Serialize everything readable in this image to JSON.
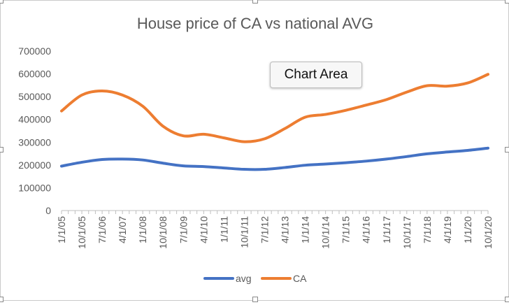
{
  "chart_data": {
    "type": "line",
    "title": "House price of CA vs national AVG",
    "xlabel": "",
    "ylabel": "",
    "ylim": [
      0,
      700000
    ],
    "yticks": [
      0,
      100000,
      200000,
      300000,
      400000,
      500000,
      600000,
      700000
    ],
    "ytick_labels": [
      "0",
      "100000",
      "200000",
      "300000",
      "400000",
      "500000",
      "600000",
      "700000"
    ],
    "x_tick_labels": [
      "1/1/05",
      "10/1/05",
      "7/1/06",
      "4/1/07",
      "1/1/08",
      "10/1/08",
      "7/1/09",
      "4/1/10",
      "1/1/11",
      "10/1/11",
      "7/1/12",
      "4/1/13",
      "1/1/14",
      "10/1/14",
      "7/1/15",
      "4/1/16",
      "1/1/17",
      "10/1/17",
      "7/1/18",
      "4/1/19",
      "1/1/20",
      "10/1/20"
    ],
    "grid": false,
    "legend_position": "bottom",
    "series": [
      {
        "name": "avg",
        "color": "#4472C4",
        "x": [
          "1/1/05",
          "10/1/05",
          "7/1/06",
          "4/1/07",
          "1/1/08",
          "10/1/08",
          "7/1/09",
          "4/1/10",
          "1/1/11",
          "10/1/11",
          "7/1/12",
          "4/1/13",
          "1/1/14",
          "10/1/14",
          "7/1/15",
          "4/1/16",
          "1/1/17",
          "10/1/17",
          "7/1/18",
          "4/1/19",
          "1/1/20",
          "10/1/20"
        ],
        "values": [
          195000,
          212000,
          224000,
          226000,
          222000,
          208000,
          196000,
          193000,
          187000,
          181000,
          181000,
          189000,
          199000,
          204000,
          210000,
          217000,
          226000,
          237000,
          249000,
          257000,
          264000,
          274000
        ]
      },
      {
        "name": "CA",
        "color": "#ED7D31",
        "x": [
          "1/1/05",
          "10/1/05",
          "7/1/06",
          "4/1/07",
          "1/1/08",
          "10/1/08",
          "7/1/09",
          "4/1/10",
          "1/1/11",
          "10/1/11",
          "7/1/12",
          "4/1/13",
          "1/1/14",
          "10/1/14",
          "7/1/15",
          "4/1/16",
          "1/1/17",
          "10/1/17",
          "7/1/18",
          "4/1/19",
          "1/1/20",
          "10/1/20"
        ],
        "values": [
          437000,
          507000,
          525000,
          507000,
          458000,
          370000,
          328000,
          335000,
          319000,
          302000,
          315000,
          360000,
          410000,
          422000,
          440000,
          463000,
          487000,
          520000,
          548000,
          546000,
          560000,
          598000
        ]
      }
    ]
  },
  "tooltip": {
    "label": "Chart Area"
  }
}
